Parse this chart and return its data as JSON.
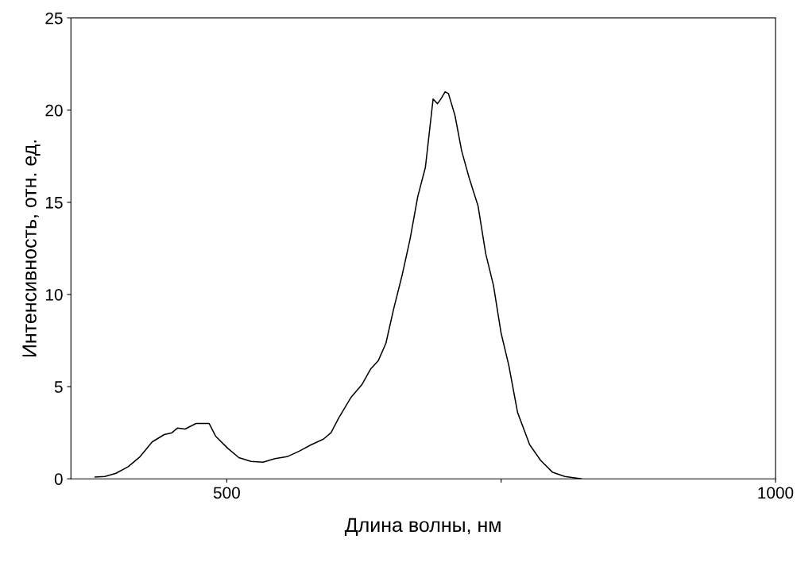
{
  "chart_data": {
    "type": "line",
    "xlabel": "Длина волны, нм",
    "ylabel": "Интенсивность, отн. ед.",
    "xlim": [
      358,
      1000
    ],
    "xticks": [
      500,
      {
        "value": 750,
        "label": null
      },
      1000
    ],
    "ylim": [
      0,
      25
    ],
    "yticks": [
      0,
      5,
      10,
      15,
      20,
      25
    ],
    "grid": false,
    "legend": false,
    "series": [
      {
        "color": "#000000",
        "x": [
          380,
          389,
          399,
          410,
          421,
          432,
          443,
          450,
          455,
          462,
          472,
          484,
          490,
          501,
          511,
          522,
          533,
          544,
          555,
          566,
          577,
          588,
          595,
          602,
          613,
          623,
          631,
          638,
          645,
          652,
          660,
          667,
          674,
          681,
          688,
          692,
          695,
          699,
          702,
          708,
          714,
          721,
          729,
          736,
          743,
          750,
          757,
          765,
          776,
          786,
          797,
          808,
          823
        ],
        "values": [
          0.1,
          0.13,
          0.3,
          0.65,
          1.2,
          2.0,
          2.4,
          2.5,
          2.75,
          2.7,
          3.0,
          3.0,
          2.3,
          1.65,
          1.15,
          0.95,
          0.9,
          1.1,
          1.2,
          1.5,
          1.85,
          2.15,
          2.5,
          3.3,
          4.4,
          5.1,
          5.95,
          6.4,
          7.35,
          9.2,
          11.1,
          13.0,
          15.3,
          16.9,
          20.6,
          20.35,
          20.6,
          21.0,
          20.9,
          19.7,
          17.8,
          16.3,
          14.8,
          12.2,
          10.5,
          7.9,
          6.15,
          3.6,
          1.85,
          1.0,
          0.35,
          0.13,
          0
        ]
      }
    ]
  }
}
